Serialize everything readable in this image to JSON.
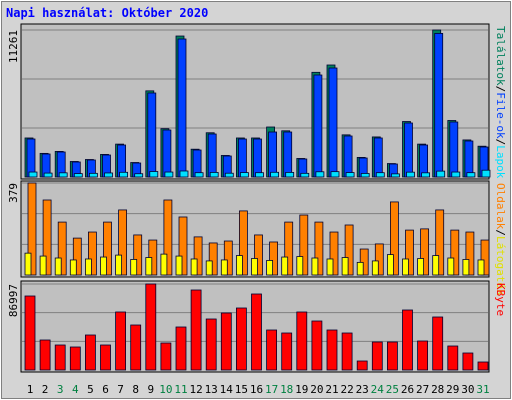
{
  "chart_data": [
    {
      "type": "bar",
      "title": "Napi használat: Október 2020",
      "categories": [
        "1",
        "2",
        "3",
        "4",
        "5",
        "6",
        "7",
        "8",
        "9",
        "10",
        "11",
        "12",
        "13",
        "14",
        "15",
        "16",
        "17",
        "18",
        "19",
        "20",
        "21",
        "22",
        "23",
        "24",
        "25",
        "26",
        "27",
        "28",
        "29",
        "30",
        "31"
      ],
      "category_colors": [
        "#000000",
        "#000000",
        "#008040",
        "#008040",
        "#000000",
        "#000000",
        "#000000",
        "#000000",
        "#000000",
        "#008040",
        "#008040",
        "#000000",
        "#000000",
        "#000000",
        "#000000",
        "#000000",
        "#008040",
        "#008040",
        "#000000",
        "#000000",
        "#000000",
        "#000000",
        "#000000",
        "#008040",
        "#008040",
        "#000000",
        "#000000",
        "#000000",
        "#000000",
        "#000000",
        "#008040"
      ],
      "ylim": [
        0,
        11261
      ],
      "yticks": [
        11261
      ],
      "legend_separator": "/",
      "series": [
        {
          "name": "Találatok",
          "color": "#00805c",
          "values": [
            2990,
            1810,
            1960,
            1190,
            1340,
            1730,
            2520,
            1110,
            6600,
            3700,
            10800,
            2130,
            3390,
            1650,
            2990,
            2990,
            3830,
            3540,
            1420,
            8020,
            8580,
            3230,
            1500,
            3070,
            1030,
            4250,
            2520,
            11261,
            4330,
            2840,
            2360
          ]
        },
        {
          "name": "File-ok",
          "color": "#0040ff",
          "values": [
            2911,
            1762,
            1915,
            1149,
            1302,
            1685,
            2451,
            1072,
            6435,
            3600,
            10572,
            2068,
            3294,
            1609,
            2911,
            2911,
            3447,
            3447,
            1379,
            7814,
            8350,
            3141,
            1455,
            2988,
            996,
            4137,
            2451,
            11000,
            4213,
            2758,
            2298
          ]
        },
        {
          "name": "Lapok",
          "color": "#00e0ff",
          "values": [
            380,
            300,
            320,
            260,
            280,
            310,
            360,
            250,
            420,
            380,
            460,
            330,
            350,
            290,
            340,
            330,
            360,
            350,
            280,
            400,
            410,
            340,
            270,
            330,
            240,
            370,
            320,
            450,
            380,
            330,
            520
          ]
        }
      ]
    },
    {
      "type": "bar",
      "ylim": [
        0,
        379
      ],
      "yticks": [
        379
      ],
      "legend_separator": "/",
      "series": [
        {
          "name": "Oldalak",
          "color": "#ff8000",
          "values": [
            379,
            309,
            218,
            152,
            177,
            218,
            268,
            165,
            144,
            309,
            239,
            157,
            132,
            140,
            264,
            165,
            136,
            218,
            247,
            218,
            177,
            206,
            107,
            128,
            301,
            185,
            190,
            268,
            185,
            177,
            144
          ]
        },
        {
          "name": "Látogatók",
          "color": "#ffff00",
          "values": [
            90,
            78,
            70,
            62,
            66,
            74,
            82,
            64,
            72,
            86,
            78,
            66,
            58,
            62,
            80,
            68,
            60,
            74,
            76,
            70,
            66,
            72,
            52,
            58,
            84,
            66,
            68,
            80,
            70,
            64,
            62
          ]
        }
      ]
    },
    {
      "type": "bar",
      "ylim": [
        0,
        86997
      ],
      "yticks": [
        86997
      ],
      "series": [
        {
          "name": "KByte",
          "color": "#ff0000",
          "values": [
            74858,
            30348,
            25290,
            23267,
            35406,
            25290,
            58673,
            45522,
            86997,
            27313,
            43499,
            80928,
            51592,
            57661,
            62719,
            76882,
            40464,
            37429,
            58673,
            49568,
            40464,
            37429,
            9104,
            28325,
            28325,
            60696,
            29336,
            53615,
            24278,
            17197,
            8093
          ]
        }
      ]
    }
  ]
}
